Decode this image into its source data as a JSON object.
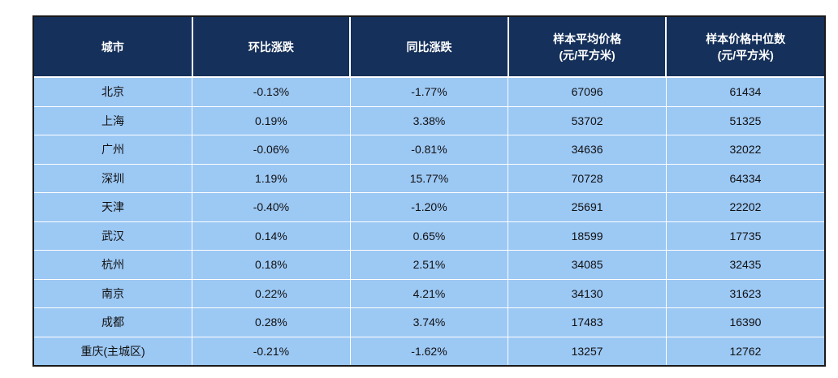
{
  "table": {
    "headers": [
      {
        "line1": "城市",
        "line2": ""
      },
      {
        "line1": "环比涨跌",
        "line2": ""
      },
      {
        "line1": "同比涨跌",
        "line2": ""
      },
      {
        "line1": "样本平均价格",
        "line2": "(元/平方米)"
      },
      {
        "line1": "样本价格中位数",
        "line2": "(元/平方米)"
      }
    ],
    "rows": [
      [
        "北京",
        "-0.13%",
        "-1.77%",
        "67096",
        "61434"
      ],
      [
        "上海",
        "0.19%",
        "3.38%",
        "53702",
        "51325"
      ],
      [
        "广州",
        "-0.06%",
        "-0.81%",
        "34636",
        "32022"
      ],
      [
        "深圳",
        "1.19%",
        "15.77%",
        "70728",
        "64334"
      ],
      [
        "天津",
        "-0.40%",
        "-1.20%",
        "25691",
        "22202"
      ],
      [
        "武汉",
        "0.14%",
        "0.65%",
        "18599",
        "17735"
      ],
      [
        "杭州",
        "0.18%",
        "2.51%",
        "34085",
        "32435"
      ],
      [
        "南京",
        "0.22%",
        "4.21%",
        "34130",
        "31623"
      ],
      [
        "成都",
        "0.28%",
        "3.74%",
        "17483",
        "16390"
      ],
      [
        "重庆(主城区)",
        "-0.21%",
        "-1.62%",
        "13257",
        "12762"
      ]
    ]
  },
  "colors": {
    "header_bg": "#15305a",
    "row_bg": "#9cc8f4",
    "border": "#1a1a1a"
  }
}
